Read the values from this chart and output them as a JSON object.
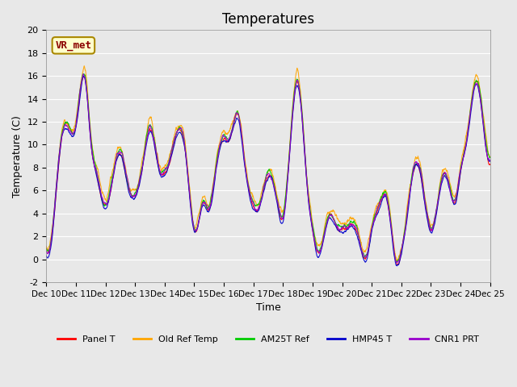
{
  "title": "Temperatures",
  "xlabel": "Time",
  "ylabel": "Temperature (C)",
  "ylim": [
    -2,
    20
  ],
  "xlim": [
    0,
    15
  ],
  "yticks": [
    -2,
    0,
    2,
    4,
    6,
    8,
    10,
    12,
    14,
    16,
    18,
    20
  ],
  "xtick_labels": [
    "Dec 10",
    "Dec 11",
    "Dec 12",
    "Dec 13",
    "Dec 14",
    "Dec 15",
    "Dec 16",
    "Dec 17",
    "Dec 18",
    "Dec 19",
    "Dec 20",
    "Dec 21",
    "Dec 22",
    "Dec 23",
    "Dec 24",
    "Dec 25"
  ],
  "series_names": [
    "Panel T",
    "Old Ref Temp",
    "AM25T Ref",
    "HMP45 T",
    "CNR1 PRT"
  ],
  "series_colors": [
    "#ff0000",
    "#ffa500",
    "#00cc00",
    "#0000cc",
    "#9900cc"
  ],
  "annotation_text": "VR_met",
  "annotation_bg": "#ffffcc",
  "annotation_border": "#aa8800",
  "background_color": "#e8e8e8",
  "plot_bg": "#f0f0f0",
  "grid_color": "#ffffff",
  "linewidth": 0.8,
  "title_fontsize": 12
}
